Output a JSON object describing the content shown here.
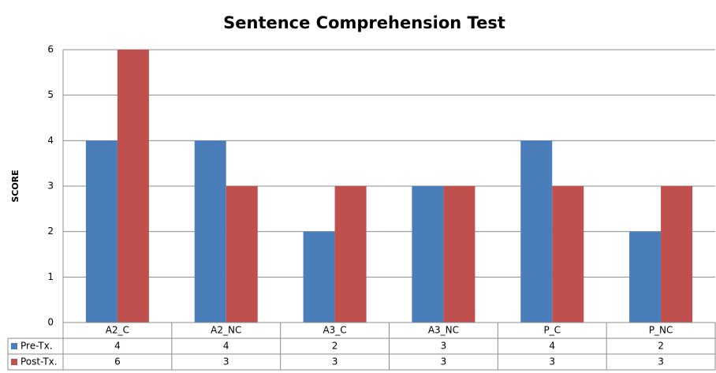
{
  "chart_data": {
    "type": "bar",
    "title": "Sentence Comprehension Test",
    "y_label": "SCORE",
    "categories": [
      "A2_C",
      "A2_NC",
      "A3_C",
      "A3_NC",
      "P_C",
      "P_NC"
    ],
    "series": [
      {
        "name": "Pre-Tx.",
        "color": "#4a7ebb",
        "values": [
          4,
          4,
          2,
          3,
          4,
          2
        ]
      },
      {
        "name": "Post-Tx.",
        "color": "#c0504d",
        "values": [
          6,
          3,
          3,
          3,
          3,
          3
        ]
      }
    ],
    "ylim": [
      0,
      6
    ],
    "yticks": [
      0,
      1,
      2,
      3,
      4,
      5,
      6
    ],
    "grid": true,
    "legend": "data-table"
  }
}
